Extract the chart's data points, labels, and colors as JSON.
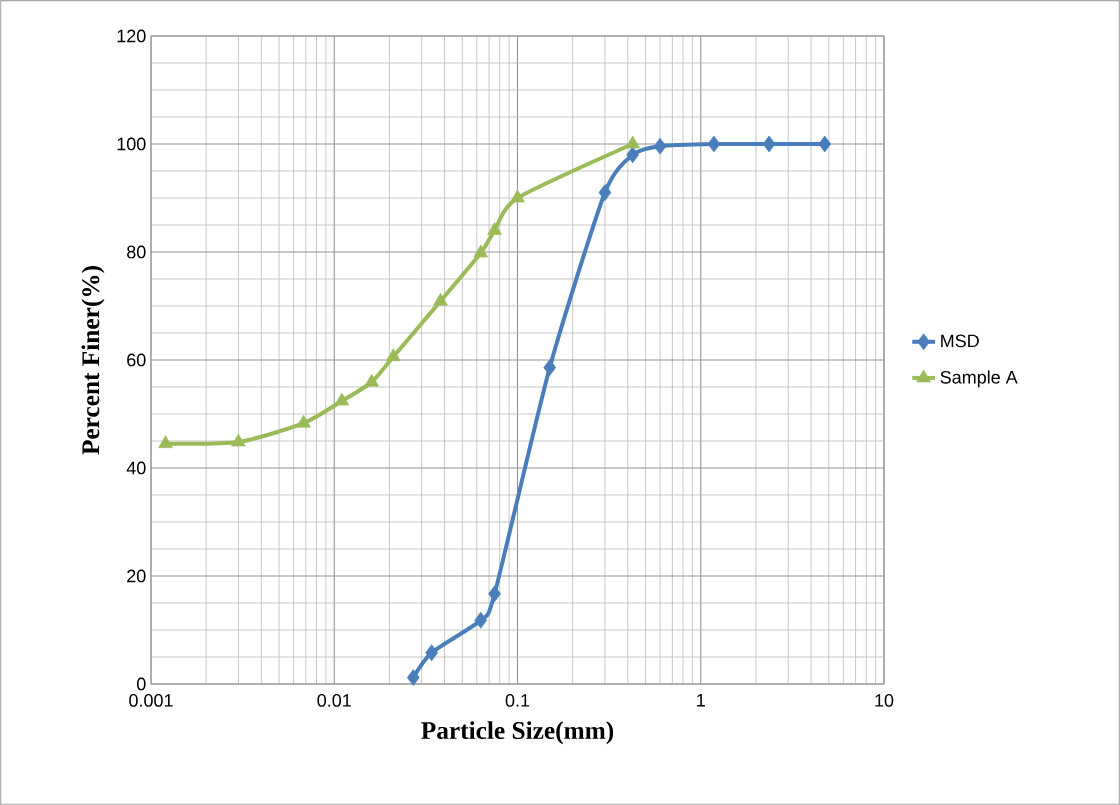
{
  "chart_data": {
    "type": "line",
    "xlabel": "Particle Size(mm)",
    "ylabel": "Percent Finer(%)",
    "log": "x",
    "xlim": [
      0.001,
      10
    ],
    "ylim": [
      0,
      120
    ],
    "xticks": [
      {
        "value": 0.001,
        "label": "0.001"
      },
      {
        "value": 0.01,
        "label": "0.01"
      },
      {
        "value": 0.1,
        "label": "0.1"
      },
      {
        "value": 1,
        "label": "1"
      },
      {
        "value": 10,
        "label": "10"
      }
    ],
    "yticks": [
      0,
      20,
      40,
      60,
      80,
      100,
      120
    ],
    "grid": true,
    "legend": "right",
    "line_style": "solid",
    "series": [
      {
        "name": "MSD",
        "color": "#4a7ebb",
        "marker": "diamond",
        "x": [
          0.027,
          0.034,
          0.063,
          0.075,
          0.15,
          0.3,
          0.425,
          0.6,
          1.18,
          2.36,
          4.75
        ],
        "values": [
          1.2,
          5.8,
          11.8,
          16.7,
          58.6,
          91,
          98,
          99.6,
          100,
          100,
          100
        ]
      },
      {
        "name": "Sample A",
        "color": "#9bbb59",
        "marker": "triangle",
        "x": [
          0.0012,
          0.003,
          0.0068,
          0.011,
          0.016,
          0.021,
          0.038,
          0.063,
          0.075,
          0.1,
          0.425
        ],
        "values": [
          44.5,
          44.8,
          48.3,
          52.4,
          55.9,
          60.6,
          70.9,
          79.8,
          84,
          90,
          100
        ]
      }
    ]
  }
}
